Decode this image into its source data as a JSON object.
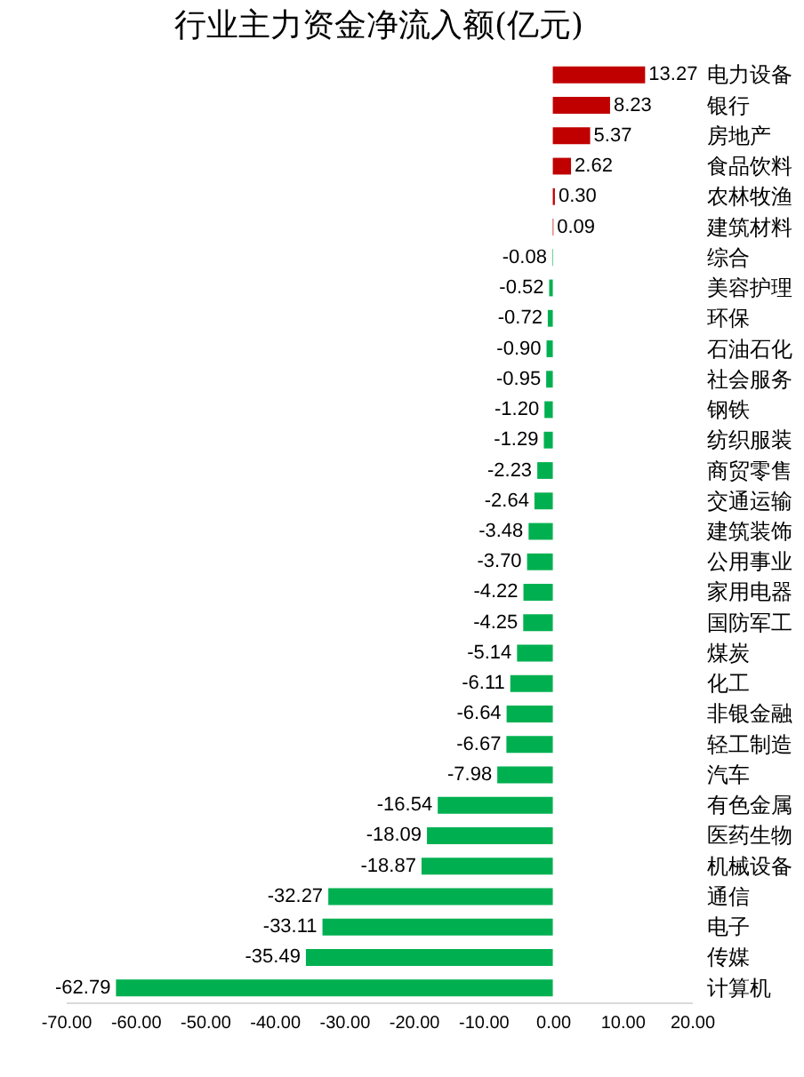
{
  "chart_data": {
    "type": "bar",
    "orientation": "horizontal",
    "title": "行业主力资金净流入额(亿元)",
    "categories": [
      "电力设备",
      "银行",
      "房地产",
      "食品饮料",
      "农林牧渔",
      "建筑材料",
      "综合",
      "美容护理",
      "环保",
      "石油石化",
      "社会服务",
      "钢铁",
      "纺织服装",
      "商贸零售",
      "交通运输",
      "建筑装饰",
      "公用事业",
      "家用电器",
      "国防军工",
      "煤炭",
      "化工",
      "非银金融",
      "轻工制造",
      "汽车",
      "有色金属",
      "医药生物",
      "机械设备",
      "通信",
      "电子",
      "传媒",
      "计算机"
    ],
    "values": [
      13.27,
      8.23,
      5.37,
      2.62,
      0.3,
      0.09,
      -0.08,
      -0.52,
      -0.72,
      -0.9,
      -0.95,
      -1.2,
      -1.29,
      -2.23,
      -2.64,
      -3.48,
      -3.7,
      -4.22,
      -4.25,
      -5.14,
      -6.11,
      -6.64,
      -6.67,
      -7.98,
      -16.54,
      -18.09,
      -18.87,
      -32.27,
      -33.11,
      -35.49,
      -62.79
    ],
    "value_labels": [
      "13.27",
      "8.23",
      "5.37",
      "2.62",
      "0.30",
      "0.09",
      "-0.08",
      "-0.52",
      "-0.72",
      "-0.90",
      "-0.95",
      "-1.20",
      "-1.29",
      "-2.23",
      "-2.64",
      "-3.48",
      "-3.70",
      "-4.22",
      "-4.25",
      "-5.14",
      "-6.11",
      "-6.64",
      "-6.67",
      "-7.98",
      "-16.54",
      "-18.09",
      "-18.87",
      "-32.27",
      "-33.11",
      "-35.49",
      "-62.79"
    ],
    "colors": [
      "#c00000",
      "#c00000",
      "#c00000",
      "#c00000",
      "#c00000",
      "#c00000",
      "#00b050",
      "#00b050",
      "#00b050",
      "#00b050",
      "#00b050",
      "#00b050",
      "#00b050",
      "#00b050",
      "#00b050",
      "#00b050",
      "#00b050",
      "#00b050",
      "#00b050",
      "#00b050",
      "#00b050",
      "#00b050",
      "#00b050",
      "#00b050",
      "#00b050",
      "#00b050",
      "#00b050",
      "#00b050",
      "#00b050",
      "#00b050",
      "#00b050"
    ],
    "xlim": [
      -70,
      20
    ],
    "xticks": [
      {
        "value": -70,
        "label": "-70.00"
      },
      {
        "value": -60,
        "label": "-60.00"
      },
      {
        "value": -50,
        "label": "-50.00"
      },
      {
        "value": -40,
        "label": "-40.00"
      },
      {
        "value": -30,
        "label": "-30.00"
      },
      {
        "value": -20,
        "label": "-20.00"
      },
      {
        "value": -10,
        "label": "-10.00"
      },
      {
        "value": 0,
        "label": "0.00"
      },
      {
        "value": 10,
        "label": "10.00"
      },
      {
        "value": 20,
        "label": "20.00"
      }
    ]
  }
}
